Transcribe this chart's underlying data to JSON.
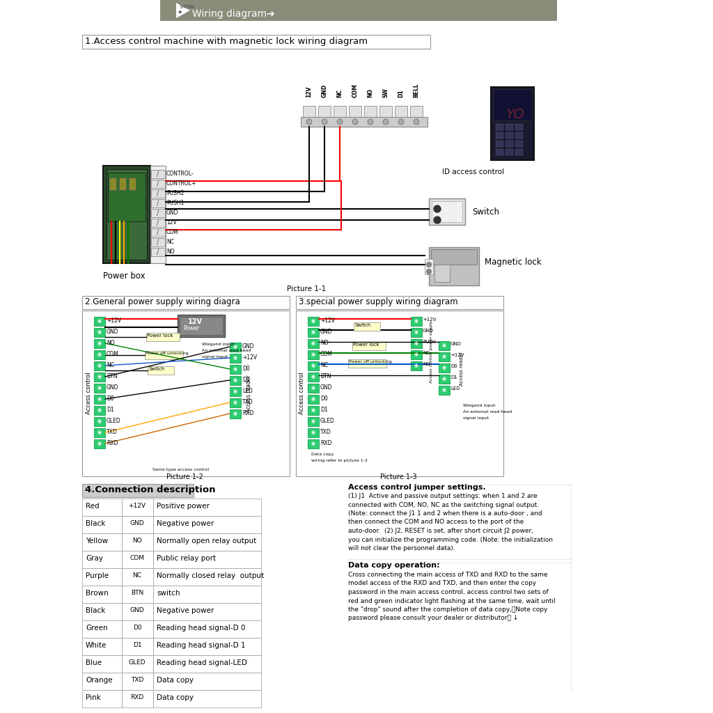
{
  "bg_color": "#ffffff",
  "header_bg": "#8B8B7A",
  "header_text": "Wiring diagram",
  "section1_title": "1.Access control machine with magnetic lock wiring diagram",
  "section2_title": "2.General power supply wiring diagra",
  "section3_title": "3.special power supply wiring diagram",
  "section4_title": "4.Connection description",
  "pic1_label": "Picture 1-1",
  "pic2_label": "Picture 1-2",
  "pic3_label": "Picture 1-3",
  "powerbox_label": "Power box",
  "id_access_label": "ID access control",
  "switch_label": "Switch",
  "mag_lock_label": "Magnetic lock",
  "powerbox_terminals": [
    "CONTROL-",
    "CONTROL+",
    "PUSH2",
    "PUSH1",
    "GND",
    "12V",
    "COM",
    "NC",
    "NO"
  ],
  "access_terminals": [
    "12V",
    "GND",
    "NC",
    "COM",
    "NO",
    "SW",
    "D1",
    "BELL"
  ],
  "table_rows": [
    [
      "Red",
      "+12V",
      "Positive power"
    ],
    [
      "Black",
      "GND",
      "Negative power"
    ],
    [
      "Yellow",
      "NO",
      "Normally open relay output"
    ],
    [
      "Gray",
      "COM",
      "Public relay port"
    ],
    [
      "Purple",
      "NC",
      "Normally closed relay  output"
    ],
    [
      "Brown",
      "BTN",
      "switch"
    ],
    [
      "Black",
      "GND",
      "Negative power"
    ],
    [
      "Green",
      "D0",
      "Reading head signal-D 0"
    ],
    [
      "White",
      "D1",
      "Reading head signal-D 1"
    ],
    [
      "Blue",
      "GLED",
      "Reading head signal-LED"
    ],
    [
      "Orange",
      "TXD",
      "Data copy"
    ],
    [
      "Pink",
      "RXD",
      "Data copy"
    ]
  ],
  "jumper_title": "Access control jumper settings.",
  "jumper_body": "(1) J1  Active and passive output settings: when 1 and 2 are\nconnected with COM, NO, NC as the switching signal output.\n(Note: connect the J1 1 and 2 when there is a auto-door , and\nthen connect the COM and NO access to the port of the\nauto-door.  (2) J2, RESET is set, after short circuit J2 power,\nyou can initialize the programming code. (Note: the initialization\nwill not clear the personnel data).",
  "datacopy_title": "Data copy operation:",
  "datacopy_body": "Cross connecting the main access of TXD and RXD to the same\nmodel access of the RXD and TXD, and then enter the copy\npassword in the main access control, access control two sets of\nred and green indicator light flashing at the same time, wait until\nthe \"drop\" sound after the completion of data copy,（Note copy\npassword please consult your dealer or distributor） ↓"
}
